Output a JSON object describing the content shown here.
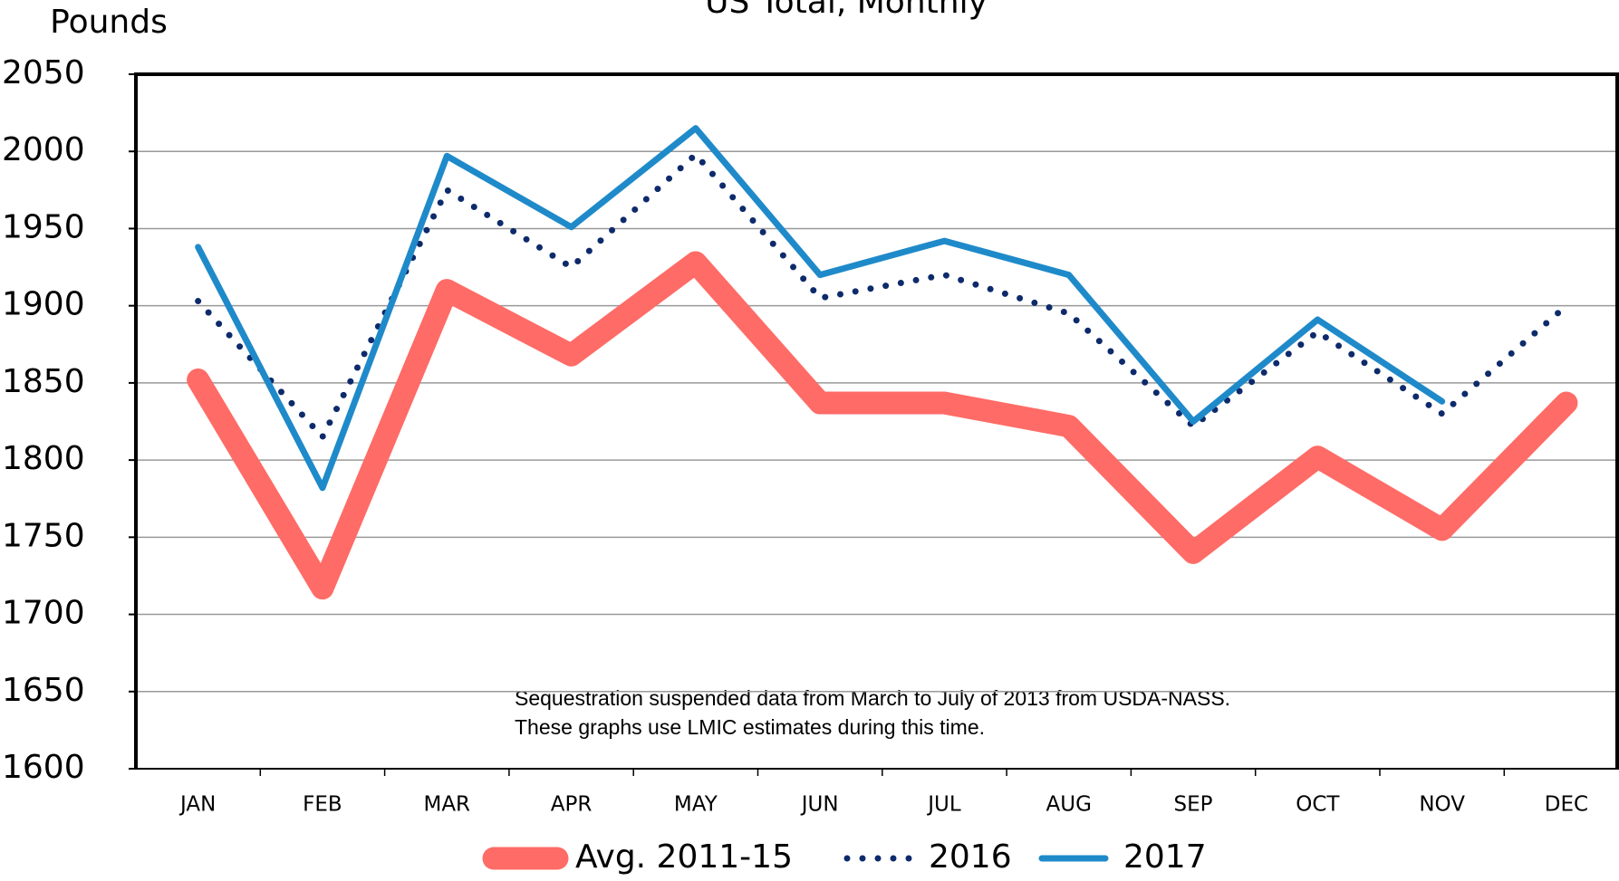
{
  "chart_data": {
    "type": "line",
    "title": "US Total, Monthly",
    "y_label": "Pounds",
    "categories": [
      "JAN",
      "FEB",
      "MAR",
      "APR",
      "MAY",
      "JUN",
      "JUL",
      "AUG",
      "SEP",
      "OCT",
      "NOV",
      "DEC"
    ],
    "series": [
      {
        "name": "Avg. 2011-15",
        "color": "#ff6b66",
        "style": "solid",
        "width": 25,
        "values": [
          1852,
          1717,
          1910,
          1868,
          1928,
          1837,
          1837,
          1822,
          1740,
          1802,
          1755,
          1837
        ]
      },
      {
        "name": "2016",
        "color": "#0d2a6b",
        "style": "dotted",
        "width": 7,
        "values": [
          1903,
          1815,
          1975,
          1925,
          1998,
          1905,
          1920,
          1895,
          1822,
          1883,
          1830,
          1900
        ]
      },
      {
        "name": "2017",
        "color": "#1f8ac9",
        "style": "solid",
        "width": 7,
        "values": [
          1938,
          1782,
          1997,
          1951,
          2015,
          1920,
          1942,
          1920,
          1825,
          1891,
          1838,
          null
        ]
      }
    ],
    "ylim": [
      1600,
      2050
    ],
    "yticks": [
      1600,
      1650,
      1700,
      1750,
      1800,
      1850,
      1900,
      1950,
      2000,
      2050
    ],
    "grid": true,
    "annotation": [
      "Sequestration suspended data from March to July of 2013 from USDA-NASS.",
      "These graphs use LMIC estimates during this time."
    ]
  }
}
